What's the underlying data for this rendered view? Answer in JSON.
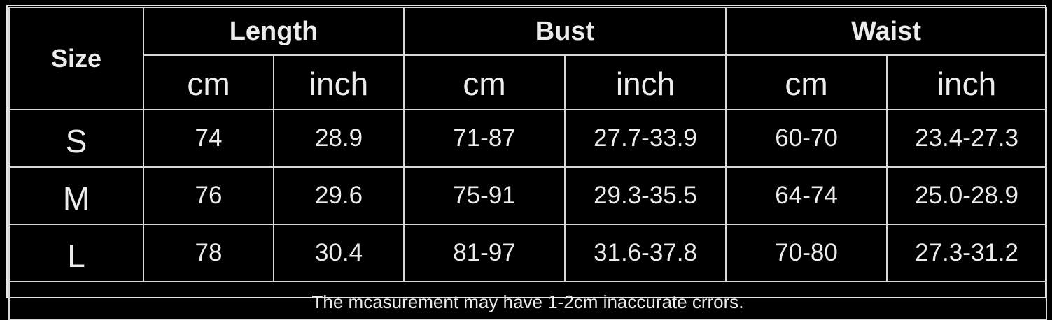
{
  "table": {
    "size_header": "Size",
    "groups": [
      "Length",
      "Bust",
      "Waist"
    ],
    "units": [
      "cm",
      "inch",
      "cm",
      "inch",
      "cm",
      "inch"
    ],
    "rows": [
      {
        "size": "S",
        "values": [
          "74",
          "28.9",
          "71-87",
          "27.7-33.9",
          "60-70",
          "23.4-27.3"
        ]
      },
      {
        "size": "M",
        "values": [
          "76",
          "29.6",
          "75-91",
          "29.3-35.5",
          "64-74",
          "25.0-28.9"
        ]
      },
      {
        "size": "L",
        "values": [
          "78",
          "30.4",
          "81-97",
          "31.6-37.8",
          "70-80",
          "27.3-31.2"
        ]
      }
    ],
    "footnote": "The mcasurement may have 1-2cm inaccurate crrors."
  },
  "colors": {
    "background": "#000000",
    "text": "#ececec",
    "border": "#d8d8d8"
  }
}
